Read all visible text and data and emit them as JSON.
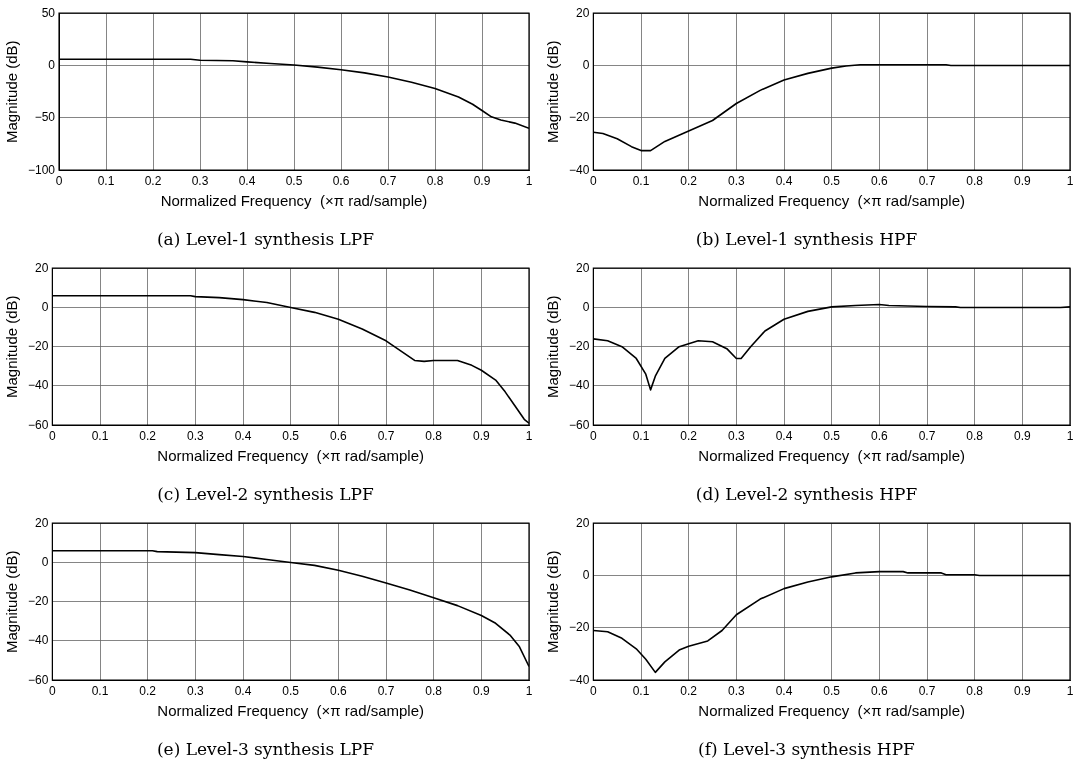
{
  "chart_data": [
    {
      "type": "line",
      "title": "(a) Level-1 synthesis LPF",
      "xlabel": "Normalized Frequency  (×π rad/sample)",
      "ylabel": "Magnitude (dB)",
      "xlim": [
        0,
        1
      ],
      "xticks": [
        0,
        0.1,
        0.2,
        0.3,
        0.4,
        0.5,
        0.6,
        0.7,
        0.8,
        0.9,
        1
      ],
      "ylim": [
        -100,
        50
      ],
      "yticks": [
        -100,
        -50,
        0,
        50
      ],
      "grid": true,
      "marker": "none",
      "line_style": "solid",
      "series": [
        {
          "color": "#000000",
          "x": [
            0,
            0.1,
            0.2,
            0.28,
            0.3,
            0.37,
            0.4,
            0.45,
            0.5,
            0.55,
            0.6,
            0.65,
            0.7,
            0.75,
            0.8,
            0.85,
            0.88,
            0.9,
            0.92,
            0.94,
            0.97,
            1
          ],
          "values": [
            6,
            6,
            6,
            6,
            5,
            4.5,
            3.5,
            2,
            0.5,
            -1.5,
            -4,
            -7,
            -11,
            -16,
            -22,
            -30,
            -37,
            -43,
            -49,
            -52,
            -55,
            -60
          ]
        }
      ]
    },
    {
      "type": "line",
      "title": "(b) Level-1 synthesis HPF",
      "xlabel": "Normalized Frequency  (×π rad/sample)",
      "ylabel": "Magnitude (dB)",
      "xlim": [
        0,
        1
      ],
      "xticks": [
        0,
        0.1,
        0.2,
        0.3,
        0.4,
        0.5,
        0.6,
        0.7,
        0.8,
        0.9,
        1
      ],
      "ylim": [
        -40,
        20
      ],
      "yticks": [
        -40,
        -20,
        0,
        20
      ],
      "grid": true,
      "marker": "none",
      "line_style": "solid",
      "series": [
        {
          "color": "#000000",
          "x": [
            0,
            0.02,
            0.05,
            0.08,
            0.1,
            0.12,
            0.15,
            0.2,
            0.25,
            0.3,
            0.35,
            0.4,
            0.45,
            0.5,
            0.53,
            0.56,
            0.6,
            0.74,
            0.75,
            1
          ],
          "values": [
            -25.5,
            -26,
            -28,
            -31,
            -32.5,
            -32.5,
            -29,
            -25,
            -21,
            -14.5,
            -9.5,
            -5.5,
            -3,
            -1,
            -0.2,
            0.3,
            0.3,
            0.3,
            0,
            0
          ]
        }
      ]
    },
    {
      "type": "line",
      "title": "(c) Level-2 synthesis LPF",
      "xlabel": "Normalized Frequency  (×π rad/sample)",
      "ylabel": "Magnitude (dB)",
      "xlim": [
        0,
        1
      ],
      "xticks": [
        0,
        0.1,
        0.2,
        0.3,
        0.4,
        0.5,
        0.6,
        0.7,
        0.8,
        0.9,
        1
      ],
      "ylim": [
        -60,
        20
      ],
      "yticks": [
        -60,
        -40,
        -20,
        0,
        20
      ],
      "grid": true,
      "marker": "none",
      "line_style": "solid",
      "series": [
        {
          "color": "#000000",
          "x": [
            0,
            0.29,
            0.3,
            0.35,
            0.4,
            0.45,
            0.5,
            0.55,
            0.6,
            0.65,
            0.7,
            0.73,
            0.76,
            0.78,
            0.8,
            0.85,
            0.88,
            0.9,
            0.93,
            0.95,
            0.97,
            0.99,
            1
          ],
          "values": [
            6,
            6,
            5.5,
            5,
            4,
            2.5,
            0,
            -2.5,
            -6,
            -11,
            -17,
            -22,
            -27,
            -27.5,
            -27,
            -27,
            -29.5,
            -32,
            -37,
            -43,
            -50,
            -57,
            -59
          ]
        }
      ]
    },
    {
      "type": "line",
      "title": "(d) Level-2 synthesis HPF",
      "xlabel": "Normalized Frequency  (×π rad/sample)",
      "ylabel": "Magnitude (dB)",
      "xlim": [
        0,
        1
      ],
      "xticks": [
        0,
        0.1,
        0.2,
        0.3,
        0.4,
        0.5,
        0.6,
        0.7,
        0.8,
        0.9,
        1
      ],
      "ylim": [
        -60,
        20
      ],
      "yticks": [
        -60,
        -40,
        -20,
        0,
        20
      ],
      "grid": true,
      "marker": "none",
      "line_style": "solid",
      "series": [
        {
          "color": "#000000",
          "x": [
            0,
            0.03,
            0.06,
            0.09,
            0.11,
            0.12,
            0.13,
            0.15,
            0.18,
            0.22,
            0.25,
            0.28,
            0.3,
            0.31,
            0.33,
            0.36,
            0.4,
            0.45,
            0.5,
            0.55,
            0.6,
            0.62,
            0.7,
            0.76,
            0.77,
            0.98,
            1
          ],
          "values": [
            -16,
            -17,
            -20,
            -26,
            -34,
            -42,
            -35,
            -26,
            -20,
            -17,
            -17.5,
            -21,
            -26,
            -26,
            -20,
            -12,
            -6,
            -2,
            0.3,
            1,
            1.5,
            1,
            0.5,
            0.3,
            0,
            0,
            0.3
          ]
        }
      ]
    },
    {
      "type": "line",
      "title": "(e) Level-3 synthesis LPF",
      "xlabel": "Normalized Frequency  (×π rad/sample)",
      "ylabel": "Magnitude (dB)",
      "xlim": [
        0,
        1
      ],
      "xticks": [
        0,
        0.1,
        0.2,
        0.3,
        0.4,
        0.5,
        0.6,
        0.7,
        0.8,
        0.9,
        1
      ],
      "ylim": [
        -60,
        20
      ],
      "yticks": [
        -60,
        -40,
        -20,
        0,
        20
      ],
      "grid": true,
      "marker": "none",
      "line_style": "solid",
      "series": [
        {
          "color": "#000000",
          "x": [
            0,
            0.21,
            0.22,
            0.3,
            0.35,
            0.4,
            0.45,
            0.5,
            0.55,
            0.6,
            0.65,
            0.7,
            0.75,
            0.8,
            0.85,
            0.9,
            0.93,
            0.96,
            0.98,
            1
          ],
          "values": [
            6,
            6,
            5.5,
            5,
            4,
            3,
            1.5,
            0,
            -1.5,
            -4,
            -7,
            -10.5,
            -14,
            -18,
            -22,
            -27,
            -31,
            -37,
            -43,
            -53
          ]
        }
      ]
    },
    {
      "type": "line",
      "title": "(f) Level-3 synthesis HPF",
      "xlabel": "Normalized Frequency  (×π rad/sample)",
      "ylabel": "Magnitude (dB)",
      "xlim": [
        0,
        1
      ],
      "xticks": [
        0,
        0.1,
        0.2,
        0.3,
        0.4,
        0.5,
        0.6,
        0.7,
        0.8,
        0.9,
        1
      ],
      "ylim": [
        -40,
        20
      ],
      "yticks": [
        -40,
        -20,
        0,
        20
      ],
      "grid": true,
      "marker": "none",
      "line_style": "solid",
      "series": [
        {
          "color": "#000000",
          "x": [
            0,
            0.03,
            0.06,
            0.09,
            0.11,
            0.13,
            0.15,
            0.18,
            0.2,
            0.24,
            0.27,
            0.3,
            0.35,
            0.4,
            0.45,
            0.5,
            0.55,
            0.6,
            0.65,
            0.66,
            0.73,
            0.74,
            0.8,
            0.81,
            1
          ],
          "values": [
            -21,
            -21.5,
            -24,
            -28,
            -32,
            -37,
            -33,
            -28.5,
            -27,
            -25,
            -21,
            -15,
            -9,
            -5,
            -2.5,
            -0.5,
            1,
            1.5,
            1.5,
            1,
            1,
            0.3,
            0.3,
            0,
            0
          ]
        }
      ]
    }
  ]
}
